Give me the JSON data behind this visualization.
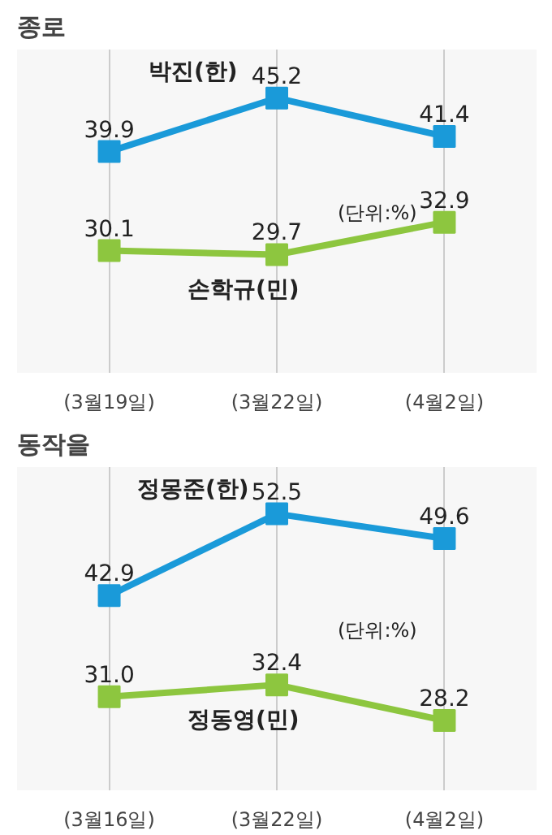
{
  "chart_data": [
    {
      "type": "line",
      "title": "종로",
      "categories": [
        "(3월19일)",
        "(3월22일)",
        "(4월2일)"
      ],
      "ylim": [
        18,
        50
      ],
      "grid": "x",
      "marker": "square",
      "data_labels": true,
      "legend": false,
      "annotations": [
        "(단위:%)"
      ],
      "series": [
        {
          "name": "박진(한)",
          "color": "#1a9ad9",
          "values": [
            39.9,
            45.2,
            41.4
          ]
        },
        {
          "name": "손학규(민)",
          "color": "#8dc63f",
          "values": [
            30.1,
            29.7,
            32.9
          ]
        }
      ]
    },
    {
      "type": "line",
      "title": "동작을",
      "categories": [
        "(3월16일)",
        "(3월22일)",
        "(4월2일)"
      ],
      "ylim": [
        20,
        58
      ],
      "grid": "x",
      "marker": "square",
      "data_labels": true,
      "legend": false,
      "annotations": [
        "(단위:%)"
      ],
      "series": [
        {
          "name": "정몽준(한)",
          "color": "#1a9ad9",
          "values": [
            42.9,
            52.5,
            49.6
          ]
        },
        {
          "name": "정동영(민)",
          "color": "#8dc63f",
          "values": [
            31.0,
            32.4,
            28.2
          ],
          "value_labels": [
            "31.0",
            "32.4",
            "28.2"
          ]
        }
      ]
    }
  ]
}
